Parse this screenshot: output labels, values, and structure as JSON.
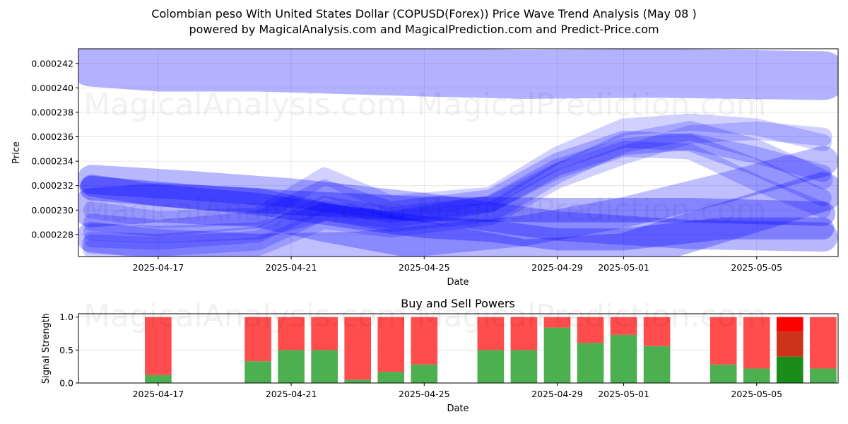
{
  "figure": {
    "title_line1": "Colombian peso With United States Dollar (COPUSD(Forex)) Price Wave Trend Analysis (May 08 )",
    "title_line2": "powered by MagicalAnalysis.com and MagicalPrediction.com and Predict-Price.com",
    "watermarks": [
      "MagicalAnalysis.com",
      "MagicalPrediction.com"
    ]
  },
  "chart_data": [
    {
      "type": "line",
      "name": "Price Wave Trend Analysis",
      "xlabel": "Date",
      "ylabel": "Price",
      "xlim": [
        "2025-04-15",
        "2025-05-07"
      ],
      "ylim": [
        0.0002262,
        0.0002432
      ],
      "x_ticks": [
        "2025-04-17",
        "2025-04-21",
        "2025-04-25",
        "2025-04-29",
        "2025-05-01",
        "2025-05-05"
      ],
      "y_ticks": [
        "0.000228",
        "0.000230",
        "0.000232",
        "0.000234",
        "0.000236",
        "0.000238",
        "0.000240",
        "0.000242"
      ],
      "grid": true,
      "line_color": "#0000ff",
      "bands": [
        {
          "x": [
            "2025-04-15",
            "2025-04-17",
            "2025-04-20",
            "2025-04-25",
            "2025-04-28",
            "2025-05-02",
            "2025-05-07"
          ],
          "y": [
            0.0002421,
            0.0002417,
            0.0002417,
            0.0002413,
            0.0002411,
            0.0002412,
            0.000241
          ],
          "width": 4e-06,
          "alpha": 0.3
        },
        {
          "x": [
            "2025-04-15",
            "2025-04-17",
            "2025-04-20",
            "2025-04-22",
            "2025-04-25",
            "2025-04-28",
            "2025-05-01",
            "2025-05-04",
            "2025-05-07"
          ],
          "y": [
            0.0002302,
            0.0002306,
            0.0002302,
            0.000229,
            0.0002275,
            0.000226,
            0.0002265,
            0.000229,
            0.0002315
          ],
          "width": 3.2e-06,
          "alpha": 0.28
        },
        {
          "x": [
            "2025-04-15",
            "2025-04-18",
            "2025-04-21",
            "2025-04-25",
            "2025-04-29",
            "2025-05-03",
            "2025-05-07"
          ],
          "y": [
            0.0002318,
            0.0002311,
            0.0002306,
            0.0002301,
            0.00023,
            0.00023,
            0.0002297
          ],
          "width": 2e-06,
          "alpha": 0.3
        },
        {
          "x": [
            "2025-04-15",
            "2025-04-17",
            "2025-04-20",
            "2025-04-23",
            "2025-04-25",
            "2025-04-27",
            "2025-04-29",
            "2025-05-01",
            "2025-05-04",
            "2025-05-07"
          ],
          "y": [
            0.000232,
            0.0002312,
            0.0002305,
            0.0002293,
            0.0002286,
            0.0002283,
            0.0002276,
            0.0002276,
            0.0002285,
            0.0002285
          ],
          "width": 1.8e-06,
          "alpha": 0.3
        },
        {
          "x": [
            "2025-04-15",
            "2025-04-17",
            "2025-04-20",
            "2025-04-23",
            "2025-04-25",
            "2025-04-28",
            "2025-05-01",
            "2025-05-04",
            "2025-05-07"
          ],
          "y": [
            0.0002278,
            0.0002272,
            0.0002268,
            0.000227,
            0.0002275,
            0.0002283,
            0.0002298,
            0.0002318,
            0.000234
          ],
          "width": 2.5e-06,
          "alpha": 0.25
        },
        {
          "x": [
            "2025-04-15",
            "2025-04-18",
            "2025-04-21",
            "2025-04-24",
            "2025-04-25",
            "2025-04-29",
            "2025-05-03",
            "2025-05-07"
          ],
          "y": [
            0.0002325,
            0.000232,
            0.0002314,
            0.0002305,
            0.0002302,
            0.0002287,
            0.000228,
            0.0002278
          ],
          "width": 2.4e-06,
          "alpha": 0.28
        },
        {
          "x": [
            "2025-04-15",
            "2025-04-17",
            "2025-04-20",
            "2025-04-22",
            "2025-04-24",
            "2025-04-27",
            "2025-04-29",
            "2025-05-01",
            "2025-05-03",
            "2025-05-05",
            "2025-05-07"
          ],
          "y": [
            0.0002282,
            0.000228,
            0.0002283,
            0.0002298,
            0.0002292,
            0.0002305,
            0.0002335,
            0.0002352,
            0.0002356,
            0.0002345,
            0.000233
          ],
          "width": 1.4e-06,
          "alpha": 0.22
        },
        {
          "x": [
            "2025-04-15",
            "2025-04-17",
            "2025-04-20",
            "2025-04-22",
            "2025-04-24",
            "2025-04-27",
            "2025-04-29",
            "2025-05-01",
            "2025-05-03",
            "2025-05-05",
            "2025-05-07"
          ],
          "y": [
            0.0002272,
            0.000227,
            0.0002275,
            0.00023,
            0.000229,
            0.0002298,
            0.000233,
            0.0002355,
            0.0002365,
            0.000235,
            0.0002325
          ],
          "width": 1.6e-06,
          "alpha": 0.2
        },
        {
          "x": [
            "2025-04-15",
            "2025-04-17",
            "2025-04-20",
            "2025-04-22",
            "2025-04-24",
            "2025-04-27",
            "2025-04-29",
            "2025-05-01",
            "2025-05-03",
            "2025-05-05",
            "2025-05-07"
          ],
          "y": [
            0.000229,
            0.0002285,
            0.0002292,
            0.0002318,
            0.00023,
            0.000231,
            0.000234,
            0.0002358,
            0.0002355,
            0.0002335,
            0.000231
          ],
          "width": 1.4e-06,
          "alpha": 0.22
        },
        {
          "x": [
            "2025-04-15",
            "2025-04-17",
            "2025-04-20",
            "2025-04-22",
            "2025-04-24",
            "2025-04-27",
            "2025-04-29",
            "2025-05-01",
            "2025-05-03",
            "2025-05-05",
            "2025-05-07"
          ],
          "y": [
            0.0002268,
            0.0002266,
            0.000227,
            0.0002292,
            0.0002285,
            0.0002295,
            0.0002325,
            0.0002345,
            0.0002362,
            0.0002365,
            0.000236
          ],
          "width": 1.5e-06,
          "alpha": 0.18
        },
        {
          "x": [
            "2025-04-15",
            "2025-04-17",
            "2025-04-20",
            "2025-04-22",
            "2025-04-24",
            "2025-04-27",
            "2025-04-29",
            "2025-05-01",
            "2025-05-03",
            "2025-05-05",
            "2025-05-07"
          ],
          "y": [
            0.00023,
            0.0002292,
            0.0002295,
            0.0002328,
            0.0002305,
            0.0002312,
            0.0002345,
            0.0002368,
            0.0002372,
            0.0002368,
            0.0002355
          ],
          "width": 1.4e-06,
          "alpha": 0.18
        },
        {
          "x": [
            "2025-04-15",
            "2025-04-17",
            "2025-04-20",
            "2025-04-22",
            "2025-04-24",
            "2025-04-27",
            "2025-04-29",
            "2025-05-01",
            "2025-05-03",
            "2025-05-05",
            "2025-05-07"
          ],
          "y": [
            0.0002276,
            0.0002274,
            0.000228,
            0.0002305,
            0.0002296,
            0.0002305,
            0.0002332,
            0.000235,
            0.0002348,
            0.0002322,
            0.00023
          ],
          "width": 1.3e-06,
          "alpha": 0.2
        }
      ]
    },
    {
      "type": "bar",
      "name": "Buy and Sell Powers",
      "title": "Buy and Sell Powers",
      "xlabel": "Date",
      "ylabel": "Signal Strength",
      "xlim": [
        "2025-04-15",
        "2025-05-07"
      ],
      "ylim": [
        0,
        1.05
      ],
      "x_ticks": [
        "2025-04-17",
        "2025-04-21",
        "2025-04-25",
        "2025-04-29",
        "2025-05-01",
        "2025-05-05"
      ],
      "y_ticks": [
        "0.0",
        "0.5",
        "1.0"
      ],
      "grid": true,
      "colors": {
        "buy": "#4caf50",
        "sell": "#ff4d4d",
        "buy_highlight": "#1a8c1a",
        "sell_highlight": "#ff0000",
        "overlap": "#cc3319"
      },
      "x": [
        "2025-04-17",
        "2025-04-20",
        "2025-04-21",
        "2025-04-22",
        "2025-04-23",
        "2025-04-24",
        "2025-04-25",
        "2025-04-27",
        "2025-04-28",
        "2025-04-29",
        "2025-04-30",
        "2025-05-01",
        "2025-05-02",
        "2025-05-04",
        "2025-05-05",
        "2025-05-06",
        "2025-05-07"
      ],
      "buy": [
        0.12,
        0.33,
        0.5,
        0.5,
        0.05,
        0.17,
        0.28,
        0.5,
        0.5,
        0.84,
        0.61,
        0.73,
        0.56,
        0.28,
        0.22,
        0.4,
        0.22
      ],
      "sell": [
        0.88,
        0.67,
        0.5,
        0.5,
        0.95,
        0.83,
        0.72,
        0.5,
        0.5,
        0.16,
        0.39,
        0.27,
        0.44,
        0.72,
        0.78,
        0.6,
        0.78
      ],
      "highlight": [
        false,
        false,
        false,
        false,
        false,
        false,
        false,
        false,
        false,
        false,
        false,
        false,
        false,
        false,
        false,
        true,
        false
      ],
      "highlight_detail": {
        "buy": 0.4,
        "overlap_top": 0.78,
        "sell_top": 1.0
      }
    }
  ]
}
